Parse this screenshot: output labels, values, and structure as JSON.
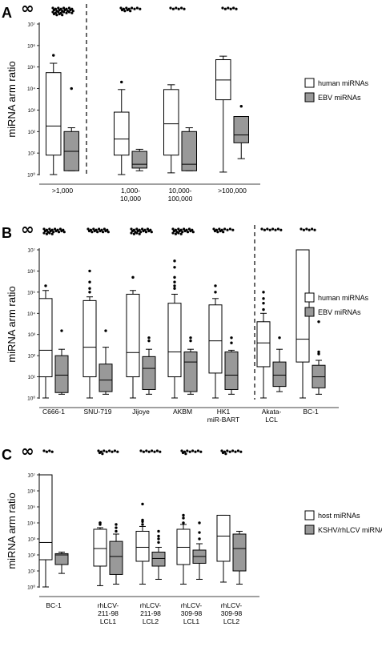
{
  "chart_data": [
    {
      "type": "box",
      "panel": "A",
      "ylabel": "miRNA arm ratio",
      "yscale": "log",
      "ylim": [
        1,
        10000000
      ],
      "y_ticks": [
        "10⁰",
        "10¹",
        "10²",
        "10³",
        "10⁴",
        "10⁵",
        "10⁶",
        "10⁷"
      ],
      "infinity_label": "∞",
      "categories": [
        ">1,000",
        "1,000-\n10,000",
        "10,000-\n100,000",
        ">100,000"
      ],
      "divider_after_index": 0,
      "legend": {
        "position": "right",
        "items": [
          {
            "label": "human miRNAs",
            "color": "#ffffff"
          },
          {
            "label": "EBV miRNAs",
            "color": "#999999"
          }
        ]
      },
      "series": [
        {
          "name": "human miRNAs",
          "color": "#ffffff",
          "boxes": [
            {
              "min": 1,
              "q1": 8,
              "median": 180,
              "q3": 55000,
              "max": 150000,
              "outliers": [
                350000
              ]
            },
            {
              "min": 1,
              "q1": 8,
              "median": 45,
              "q3": 800,
              "max": 9000,
              "outliers": [
                20000
              ]
            },
            {
              "min": 1.2,
              "q1": 8,
              "median": 230,
              "q3": 9000,
              "max": 15000,
              "outliers": []
            },
            {
              "min": 1.3,
              "q1": 3000,
              "median": 25000,
              "q3": 220000,
              "max": 320000,
              "outliers": []
            }
          ]
        },
        {
          "name": "EBV miRNAs",
          "color": "#999999",
          "boxes": [
            {
              "min": 1.5,
              "q1": 1.5,
              "median": 12,
              "q3": 100,
              "max": 150,
              "outliers": [
                10000
              ]
            },
            {
              "min": 1.5,
              "q1": 2,
              "median": 3,
              "q3": 12,
              "max": 15,
              "outliers": []
            },
            {
              "min": 1.5,
              "q1": 1.5,
              "median": 3,
              "q3": 100,
              "max": 150,
              "outliers": []
            },
            {
              "min": 5.5,
              "q1": 30,
              "median": 70,
              "q3": 500,
              "max": 500,
              "outliers": [
                1500
              ]
            }
          ]
        }
      ],
      "infinity_counts": [
        28,
        12,
        6,
        6
      ]
    },
    {
      "type": "box",
      "panel": "B",
      "ylabel": "miRNA arm ratio",
      "yscale": "log",
      "ylim": [
        1,
        10000000
      ],
      "y_ticks": [
        "10⁰",
        "10¹",
        "10²",
        "10³",
        "10⁴",
        "10⁵",
        "10⁶",
        "10⁷"
      ],
      "infinity_label": "∞",
      "categories": [
        "C666-1",
        "SNU-719",
        "Jijoye",
        "AKBM",
        "HK1\nmiR-BART",
        "Akata-\nLCL",
        "BC-1"
      ],
      "divider_after_index": 4,
      "legend": {
        "position": "right",
        "items": [
          {
            "label": "human miRNAs",
            "color": "#ffffff"
          },
          {
            "label": "EBV miRNAs",
            "color": "#999999"
          }
        ]
      },
      "series": [
        {
          "name": "human miRNAs",
          "color": "#ffffff",
          "boxes": [
            {
              "min": 1,
              "q1": 10,
              "median": 180,
              "q3": 50000,
              "max": 120000,
              "outliers": [
                200000
              ]
            },
            {
              "min": 1,
              "q1": 10,
              "median": 250,
              "q3": 40000,
              "max": 60000,
              "outliers": [
                100000,
                150000,
                300000,
                1000000
              ]
            },
            {
              "min": 1,
              "q1": 10,
              "median": 140,
              "q3": 80000,
              "max": 120000,
              "outliers": [
                500000
              ]
            },
            {
              "min": 1,
              "q1": 10,
              "median": 150,
              "q3": 30000,
              "max": 80000,
              "outliers": [
                150000,
                200000,
                300000,
                500000,
                1500000,
                3000000
              ]
            },
            {
              "min": 1,
              "q1": 15,
              "median": 500,
              "q3": 25000,
              "max": 50000,
              "outliers": [
                100000,
                200000
              ]
            },
            {
              "min": 1,
              "q1": 30,
              "median": 400,
              "q3": 4000,
              "max": 10000,
              "outliers": [
                15000,
                30000,
                50000,
                100000
              ]
            },
            {
              "min": 1,
              "q1": 50,
              "median": 600,
              "q3": 10000000,
              "max": 10000000,
              "outliers": []
            }
          ]
        },
        {
          "name": "EBV miRNAs",
          "color": "#999999",
          "boxes": [
            {
              "min": 1.5,
              "q1": 1.8,
              "median": 12,
              "q3": 100,
              "max": 200,
              "outliers": [
                1500
              ]
            },
            {
              "min": 1.5,
              "q1": 2,
              "median": 7,
              "q3": 40,
              "max": 250,
              "outliers": [
                1500
              ]
            },
            {
              "min": 1.5,
              "q1": 2.5,
              "median": 25,
              "q3": 90,
              "max": 200,
              "outliers": [
                500,
                700
              ]
            },
            {
              "min": 1.5,
              "q1": 2,
              "median": 50,
              "q3": 150,
              "max": 200,
              "outliers": [
                500,
                700
              ]
            },
            {
              "min": 1.5,
              "q1": 2.5,
              "median": 12,
              "q3": 150,
              "max": 180,
              "outliers": [
                400,
                700
              ]
            },
            {
              "min": 2,
              "q1": 3.5,
              "median": 12,
              "q3": 50,
              "max": 200,
              "outliers": [
                700
              ]
            },
            {
              "min": 1.5,
              "q1": 3,
              "median": 10,
              "q3": 35,
              "max": 60,
              "outliers": [
                120,
                150,
                4000
              ]
            }
          ]
        }
      ],
      "infinity_counts": [
        20,
        16,
        20,
        20,
        12,
        8,
        6
      ]
    },
    {
      "type": "box",
      "panel": "C",
      "ylabel": "miRNA arm ratio",
      "yscale": "log",
      "ylim": [
        1,
        10000000
      ],
      "y_ticks": [
        "10⁰",
        "10¹",
        "10²",
        "10³",
        "10⁴",
        "10⁵",
        "10⁶",
        "10⁷"
      ],
      "infinity_label": "∞",
      "categories": [
        "BC-1",
        "rhLCV-\n211-98\nLCL1",
        "rhLCV-\n211-98\nLCL2",
        "rhLCV-\n309-98\nLCL1",
        "rhLCV-\n309-98\nLCL2"
      ],
      "divider_after_index": -1,
      "legend": {
        "position": "right",
        "items": [
          {
            "label": "host miRNAs",
            "color": "#ffffff"
          },
          {
            "label": "KSHV/rhLCV miRNAs",
            "color": "#999999"
          }
        ]
      },
      "series": [
        {
          "name": "host miRNAs",
          "color": "#ffffff",
          "boxes": [
            {
              "min": 1,
              "q1": 50,
              "median": 600,
              "q3": 10000000,
              "max": 10000000,
              "outliers": []
            },
            {
              "min": 1.2,
              "q1": 20,
              "median": 250,
              "q3": 4000,
              "max": 5000,
              "outliers": [
                8000,
                10000,
                10000
              ]
            },
            {
              "min": 1.5,
              "q1": 40,
              "median": 300,
              "q3": 3000,
              "max": 6000,
              "outliers": [
                8000,
                12000,
                15000,
                150000
              ]
            },
            {
              "min": 1.5,
              "q1": 25,
              "median": 300,
              "q3": 4000,
              "max": 8000,
              "outliers": [
                10000,
                20000,
                30000
              ]
            },
            {
              "min": 2,
              "q1": 40,
              "median": 1500,
              "q3": 30000,
              "max": 30000,
              "outliers": []
            }
          ]
        },
        {
          "name": "KSHV/rhLCV miRNAs",
          "color": "#999999",
          "boxes": [
            {
              "min": 7,
              "q1": 25,
              "median": 100,
              "q3": 120,
              "max": 150,
              "outliers": []
            },
            {
              "min": 1.5,
              "q1": 6,
              "median": 80,
              "q3": 700,
              "max": 2000,
              "outliers": [
                3000,
                5000,
                8000
              ]
            },
            {
              "min": 3,
              "q1": 20,
              "median": 60,
              "q3": 150,
              "max": 300,
              "outliers": [
                600,
                1000,
                1500,
                3000
              ]
            },
            {
              "min": 3,
              "q1": 30,
              "median": 80,
              "q3": 200,
              "max": 500,
              "outliers": [
                1000,
                2500,
                10000
              ]
            },
            {
              "min": 1.5,
              "q1": 10,
              "median": 250,
              "q3": 2000,
              "max": 3000,
              "outliers": []
            }
          ]
        }
      ],
      "infinity_counts": [
        4,
        10,
        8,
        10,
        10
      ]
    }
  ]
}
